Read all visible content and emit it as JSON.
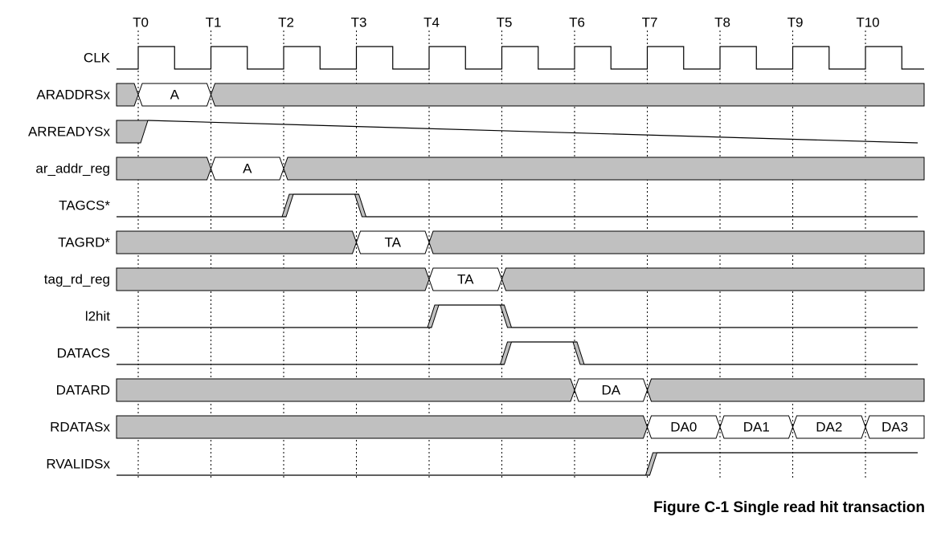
{
  "clock_labels": [
    "T0",
    "T1",
    "T2",
    "T3",
    "T4",
    "T5",
    "T6",
    "T7",
    "T8",
    "T9",
    "T10"
  ],
  "signals": [
    {
      "name": "CLK",
      "type": "clock"
    },
    {
      "name": "ARADDRSx",
      "type": "bus",
      "segments": [
        {
          "from": 0,
          "to": 1,
          "label": "A"
        }
      ]
    },
    {
      "name": "ARREADYSx",
      "type": "bit",
      "initial": "x",
      "transitions": [
        {
          "at": 0,
          "to": "low"
        }
      ]
    },
    {
      "name": "ar_addr_reg",
      "type": "bus",
      "segments": [
        {
          "from": 1,
          "to": 2,
          "label": "A"
        }
      ]
    },
    {
      "name": "TAGCS*",
      "type": "bit",
      "initial": "low",
      "transitions": [
        {
          "at": 2,
          "to": "high"
        },
        {
          "at": 3,
          "to": "low"
        }
      ]
    },
    {
      "name": "TAGRD*",
      "type": "bus",
      "segments": [
        {
          "from": 3,
          "to": 4,
          "label": "TA"
        }
      ]
    },
    {
      "name": "tag_rd_reg",
      "type": "bus",
      "segments": [
        {
          "from": 4,
          "to": 5,
          "label": "TA"
        }
      ]
    },
    {
      "name": "l2hit",
      "type": "bit",
      "initial": "low",
      "transitions": [
        {
          "at": 4,
          "to": "high"
        },
        {
          "at": 5,
          "to": "low"
        }
      ]
    },
    {
      "name": "DATACS",
      "type": "bit",
      "initial": "low",
      "transitions": [
        {
          "at": 5,
          "to": "high"
        },
        {
          "at": 6,
          "to": "low"
        }
      ]
    },
    {
      "name": "DATARD",
      "type": "bus",
      "segments": [
        {
          "from": 6,
          "to": 7,
          "label": "DA"
        }
      ]
    },
    {
      "name": "RDATASx",
      "type": "bus",
      "segments": [
        {
          "from": 7,
          "to": 8,
          "label": "DA0"
        },
        {
          "from": 8,
          "to": 9,
          "label": "DA1"
        },
        {
          "from": 9,
          "to": 10,
          "label": "DA2"
        },
        {
          "from": 10,
          "to": 11,
          "label": "DA3"
        }
      ]
    },
    {
      "name": "RVALIDSx",
      "type": "bit",
      "initial": "low",
      "transitions": [
        {
          "at": 7,
          "to": "high"
        }
      ]
    }
  ],
  "caption": "Figure C-1 Single read hit transaction",
  "colors": {
    "undefined_fill": "#c0c0c0",
    "line": "#000000",
    "grid": "#000000"
  }
}
